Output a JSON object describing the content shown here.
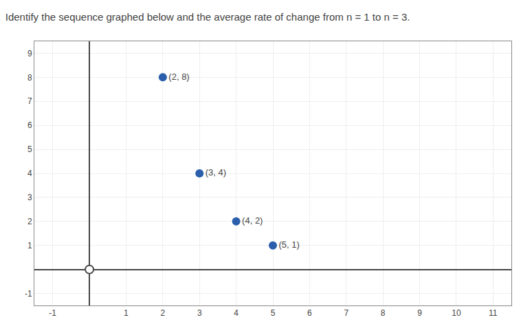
{
  "chart_data": {
    "type": "scatter",
    "title": "Identify the sequence graphed below and the average rate of change from n = 1 to n = 3.",
    "series": [
      {
        "x": [
          2,
          3,
          4,
          5
        ],
        "values": [
          8,
          4,
          2,
          1
        ],
        "value_labels": [
          "(2, 8)",
          "(3, 4)",
          "(4, 2)",
          "(5, 1)"
        ],
        "color": "#2b5fac",
        "marker": "circle"
      },
      {
        "x": [
          0
        ],
        "values": [
          0
        ],
        "color": "#444444",
        "marker": "hollow"
      }
    ],
    "data_labels": true,
    "xlim": [
      -1.5,
      11.5
    ],
    "xticks": [
      -1,
      1,
      2,
      3,
      4,
      5,
      6,
      7,
      8,
      9,
      10,
      11
    ],
    "ylim": [
      -1.5,
      9.5
    ],
    "yticks": [
      -1,
      1,
      2,
      3,
      4,
      5,
      6,
      7,
      8,
      9
    ],
    "grid": true
  }
}
